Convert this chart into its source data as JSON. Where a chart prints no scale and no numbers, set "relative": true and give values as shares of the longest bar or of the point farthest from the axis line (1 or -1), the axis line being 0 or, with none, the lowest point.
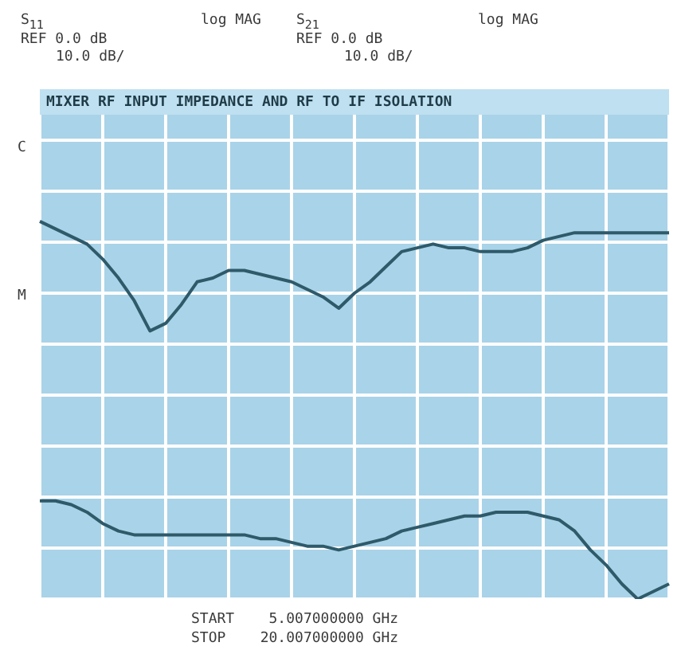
{
  "chart_data": {
    "type": "line",
    "title": "MIXER RF INPUT IMPEDANCE AND RF TO IF ISOLATION",
    "relative": true,
    "grid": true,
    "marker": "none",
    "line_style": "solid",
    "tick_labels": false,
    "categories": [
      null,
      null,
      null,
      null,
      null,
      null,
      null,
      null,
      null,
      null,
      null,
      null,
      null,
      null,
      null,
      null,
      null,
      null,
      null,
      null,
      null,
      null,
      null,
      null,
      null,
      null,
      null,
      null,
      null,
      null,
      null,
      null,
      null,
      null,
      null,
      null,
      null,
      null,
      null,
      null,
      null
    ],
    "series": [
      {
        "color": "#2e5a6a",
        "values": [
          1.0,
          0.98,
          0.96,
          0.94,
          0.9,
          0.85,
          0.79,
          0.71,
          0.73,
          0.78,
          0.84,
          0.85,
          0.87,
          0.87,
          0.86,
          0.85,
          0.84,
          0.82,
          0.8,
          0.77,
          0.81,
          0.84,
          0.88,
          0.92,
          0.93,
          0.94,
          0.93,
          0.93,
          0.92,
          0.92,
          0.92,
          0.93,
          0.95,
          0.96,
          0.97,
          0.97,
          0.97,
          0.97,
          0.97,
          0.97,
          0.97
        ]
      },
      {
        "color": "#2e5a6a",
        "values": [
          0.26,
          0.26,
          0.25,
          0.23,
          0.2,
          0.18,
          0.17,
          0.17,
          0.17,
          0.17,
          0.17,
          0.17,
          0.17,
          0.17,
          0.16,
          0.16,
          0.15,
          0.14,
          0.14,
          0.13,
          0.14,
          0.15,
          0.16,
          0.18,
          0.19,
          0.2,
          0.21,
          0.22,
          0.22,
          0.23,
          0.23,
          0.23,
          0.22,
          0.21,
          0.18,
          0.13,
          0.09,
          0.04,
          0.0,
          0.02,
          0.04
        ]
      }
    ],
    "annotations": [
      "S$_{11}$",
      "log MAG",
      "REF 0.0 dB",
      "10.0 dB/",
      "S$_{21}$",
      "log MAG",
      "REF 0.0 dB",
      "10.0 dB/",
      "C",
      "M",
      "START    5.007000000 GHz",
      "STOP    20.007000000 GHz"
    ]
  }
}
